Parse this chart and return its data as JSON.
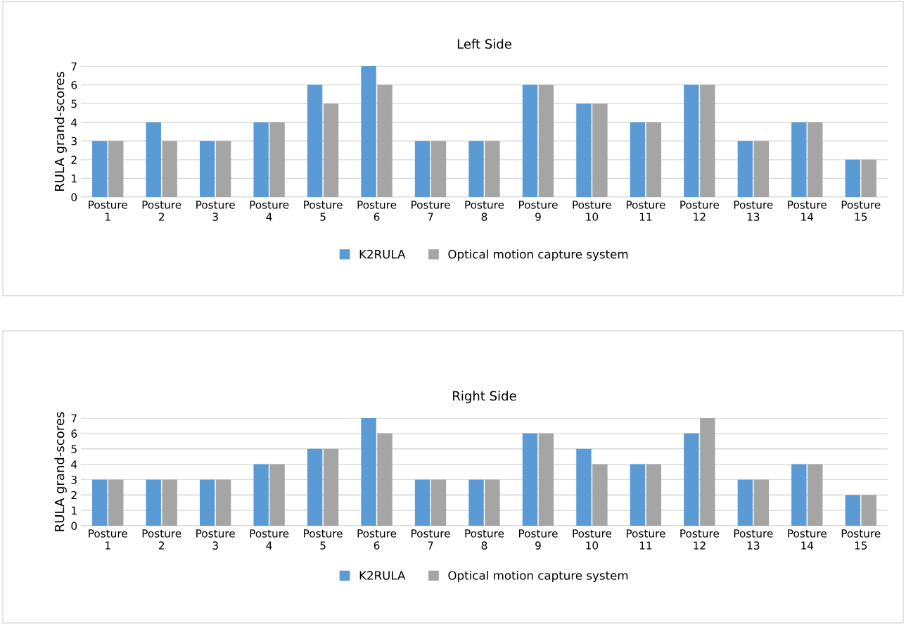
{
  "chart_data": [
    {
      "type": "bar",
      "title": "Left Side",
      "ylabel": "RULA grand-scores",
      "categories": [
        "Posture 1",
        "Posture 2",
        "Posture 3",
        "Posture 4",
        "Posture 5",
        "Posture 6",
        "Posture 7",
        "Posture 8",
        "Posture 9",
        "Posture 10",
        "Posture 11",
        "Posture 12",
        "Posture 13",
        "Posture 14",
        "Posture 15"
      ],
      "series": [
        {
          "name": "K2RULA",
          "color": "#5b9bd5",
          "values": [
            3,
            4,
            3,
            4,
            6,
            7,
            3,
            3,
            6,
            5,
            4,
            6,
            3,
            4,
            2
          ]
        },
        {
          "name": "Optical motion capture system",
          "color": "#a5a5a5",
          "values": [
            3,
            3,
            3,
            4,
            5,
            6,
            3,
            3,
            6,
            5,
            4,
            6,
            3,
            4,
            2
          ]
        }
      ],
      "ylim": [
        0,
        7
      ],
      "yticks": [
        0,
        1,
        2,
        3,
        4,
        5,
        6,
        7
      ],
      "grid": "y",
      "legend": "bottom"
    },
    {
      "type": "bar",
      "title": "Right Side",
      "ylabel": "RULA grand-scores",
      "categories": [
        "Posture 1",
        "Posture 2",
        "Posture 3",
        "Posture 4",
        "Posture 5",
        "Posture 6",
        "Posture 7",
        "Posture 8",
        "Posture 9",
        "Posture 10",
        "Posture 11",
        "Posture 12",
        "Posture 13",
        "Posture 14",
        "Posture 15"
      ],
      "series": [
        {
          "name": "K2RULA",
          "color": "#5b9bd5",
          "values": [
            3,
            3,
            3,
            4,
            5,
            7,
            3,
            3,
            6,
            5,
            4,
            6,
            3,
            4,
            2
          ]
        },
        {
          "name": "Optical motion capture system",
          "color": "#a5a5a5",
          "values": [
            3,
            3,
            3,
            4,
            5,
            6,
            3,
            3,
            6,
            4,
            4,
            7,
            3,
            4,
            2
          ]
        }
      ],
      "ylim": [
        0,
        7
      ],
      "yticks": [
        0,
        1,
        2,
        3,
        4,
        5,
        6,
        7
      ],
      "grid": "y",
      "legend": "bottom"
    }
  ]
}
